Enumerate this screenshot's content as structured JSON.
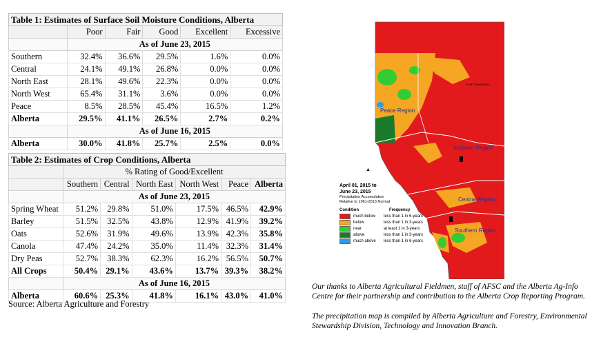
{
  "table1": {
    "title": "Table 1: Estimates of Surface Soil Moisture Conditions, Alberta",
    "columns": [
      "Poor",
      "Fair",
      "Good",
      "Excellent",
      "Excessive"
    ],
    "date1": "As of June 23, 2015",
    "rows": [
      {
        "label": "Southern",
        "values": [
          "32.4%",
          "36.6%",
          "29.5%",
          "1.6%",
          "0.0%"
        ]
      },
      {
        "label": "Central",
        "values": [
          "24.1%",
          "49.1%",
          "26.8%",
          "0.0%",
          "0.0%"
        ]
      },
      {
        "label": "North East",
        "values": [
          "28.1%",
          "49.6%",
          "22.3%",
          "0.0%",
          "0.0%"
        ]
      },
      {
        "label": "North West",
        "values": [
          "65.4%",
          "31.1%",
          "3.6%",
          "0.0%",
          "0.0%"
        ]
      },
      {
        "label": "Peace",
        "values": [
          "8.5%",
          "28.5%",
          "45.4%",
          "16.5%",
          "1.2%"
        ]
      },
      {
        "label": "Alberta",
        "values": [
          "29.5%",
          "41.1%",
          "26.5%",
          "2.7%",
          "0.2%"
        ]
      }
    ],
    "date2": "As of June 16, 2015",
    "prev": {
      "label": "Alberta",
      "values": [
        "30.0%",
        "41.8%",
        "25.7%",
        "2.5%",
        "0.0%"
      ]
    }
  },
  "table2": {
    "title": "Table 2: Estimates of Crop Conditions, Alberta",
    "subtitle": "% Rating of Good/Excellent",
    "columns": [
      "Southern",
      "Central",
      "North East",
      "North West",
      "Peace",
      "Alberta"
    ],
    "date1": "As of June 23, 2015",
    "rows": [
      {
        "label": "Spring Wheat",
        "values": [
          "51.2%",
          "29.8%",
          "51.0%",
          "17.5%",
          "46.5%",
          "42.9%"
        ]
      },
      {
        "label": "Barley",
        "values": [
          "51.5%",
          "32.5%",
          "43.8%",
          "12.9%",
          "41.9%",
          "39.2%"
        ]
      },
      {
        "label": "Oats",
        "values": [
          "52.6%",
          "31.9%",
          "49.6%",
          "13.9%",
          "42.3%",
          "35.8%"
        ]
      },
      {
        "label": "Canola",
        "values": [
          "47.4%",
          "24.2%",
          "35.0%",
          "11.4%",
          "32.3%",
          "31.4%"
        ]
      },
      {
        "label": "Dry Peas",
        "values": [
          "52.7%",
          "38.3%",
          "62.3%",
          "16.2%",
          "56.5%",
          "50.7%"
        ]
      },
      {
        "label": "All Crops",
        "values": [
          "50.4%",
          "29.1%",
          "43.6%",
          "13.7%",
          "39.3%",
          "38.2%"
        ]
      }
    ],
    "date2": "As of June 16, 2015",
    "prev": {
      "label": "Alberta",
      "values": [
        "60.6%",
        "25.3%",
        "41.8%",
        "16.1%",
        "43.0%",
        "41.0%"
      ]
    }
  },
  "source": "Source: Alberta Agriculture and Forestry",
  "map": {
    "regions": [
      "Peace Region",
      "Northern Region",
      "Central Region",
      "Southern Region"
    ],
    "city_label": "FORT McMURRAY",
    "legend_title": "April 01, 2015 to June 23, 2015",
    "legend_subtitle": "Precipitation Accumulation Relative to 1961-2013 Normal",
    "legend_head_condition": "Condition",
    "legend_head_frequency": "Frequency",
    "legend": [
      {
        "condition": "much below",
        "frequency": "less than 1 in 6-years",
        "color": "#e31a1c"
      },
      {
        "condition": "below",
        "frequency": "less than 1 in 3-years",
        "color": "#f5a623"
      },
      {
        "condition": "near",
        "frequency": "at least 1 in 3-years",
        "color": "#33cc33"
      },
      {
        "condition": "above",
        "frequency": "less than 1 in 3-years",
        "color": "#1a7a2a"
      },
      {
        "condition": "much above",
        "frequency": "less than 1 in 6-years",
        "color": "#2b9cf0"
      }
    ]
  },
  "note1": "Our thanks to Alberta Agricultural Fieldmen, staff of AFSC and the Alberta Ag-Info Centre for their partnership and contribution to the Alberta Crop Reporting Program.",
  "note2": "The precipitation map is compiled by Alberta Agriculture and Forestry, Environmental Stewardship Division, Technology and Innovation Branch."
}
